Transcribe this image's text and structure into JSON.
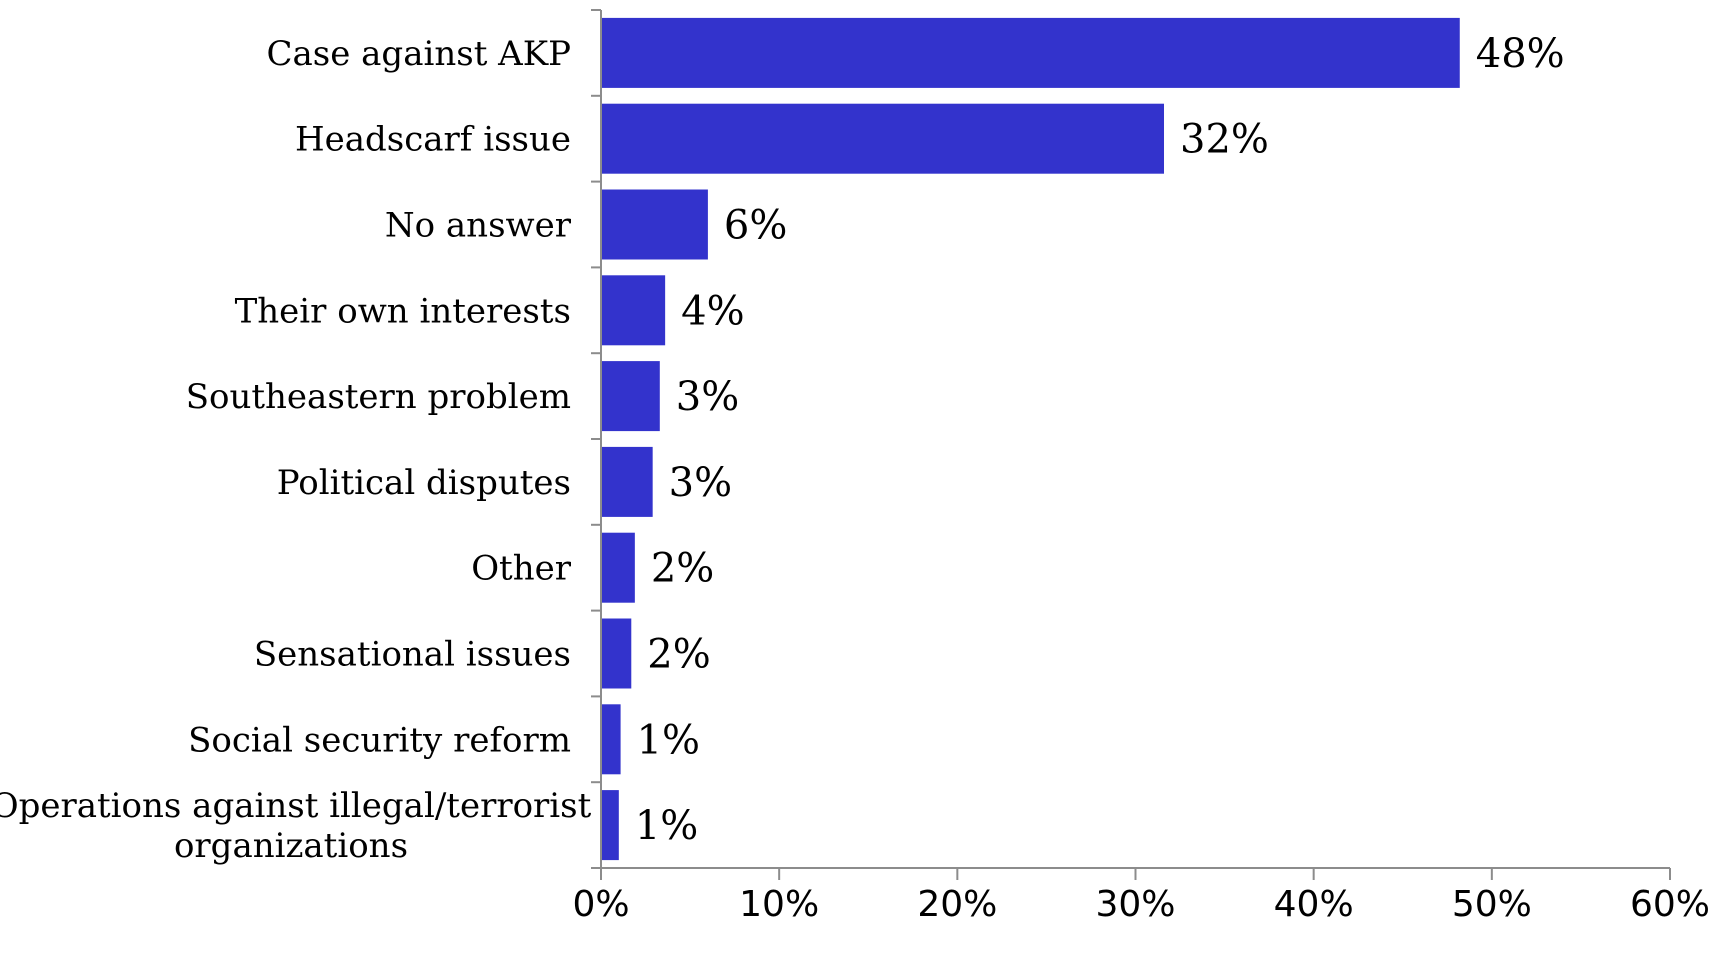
{
  "chart_data": {
    "type": "bar",
    "orientation": "horizontal",
    "categories": [
      "Case against AKP",
      "Headscarf issue",
      "No answer",
      "Their own interests",
      "Southeastern problem",
      "Political disputes",
      "Other",
      "Sensational issues",
      "Social security reform",
      "Operations against illegal/terrorist organizations"
    ],
    "category_lines": [
      [
        "Case against AKP"
      ],
      [
        "Headscarf issue"
      ],
      [
        "No answer"
      ],
      [
        "Their own interests"
      ],
      [
        "Southeastern problem"
      ],
      [
        "Political disputes"
      ],
      [
        "Other"
      ],
      [
        "Sensational issues"
      ],
      [
        "Social security reform"
      ],
      [
        "Operations against illegal/terrorist",
        "organizations"
      ]
    ],
    "values": [
      48.2,
      31.6,
      6.0,
      3.6,
      3.3,
      2.9,
      1.9,
      1.7,
      1.1,
      1.0
    ],
    "data_labels": [
      "48%",
      "32%",
      "6%",
      "4%",
      "3%",
      "3%",
      "2%",
      "2%",
      "1%",
      "1%"
    ],
    "x_ticks": [
      "0%",
      "10%",
      "20%",
      "30%",
      "40%",
      "50%",
      "60%"
    ],
    "xlim": [
      0,
      60
    ],
    "bar_color": "#3333cc",
    "grid": false,
    "legend": "none",
    "title": "",
    "xlabel": "",
    "ylabel": ""
  }
}
